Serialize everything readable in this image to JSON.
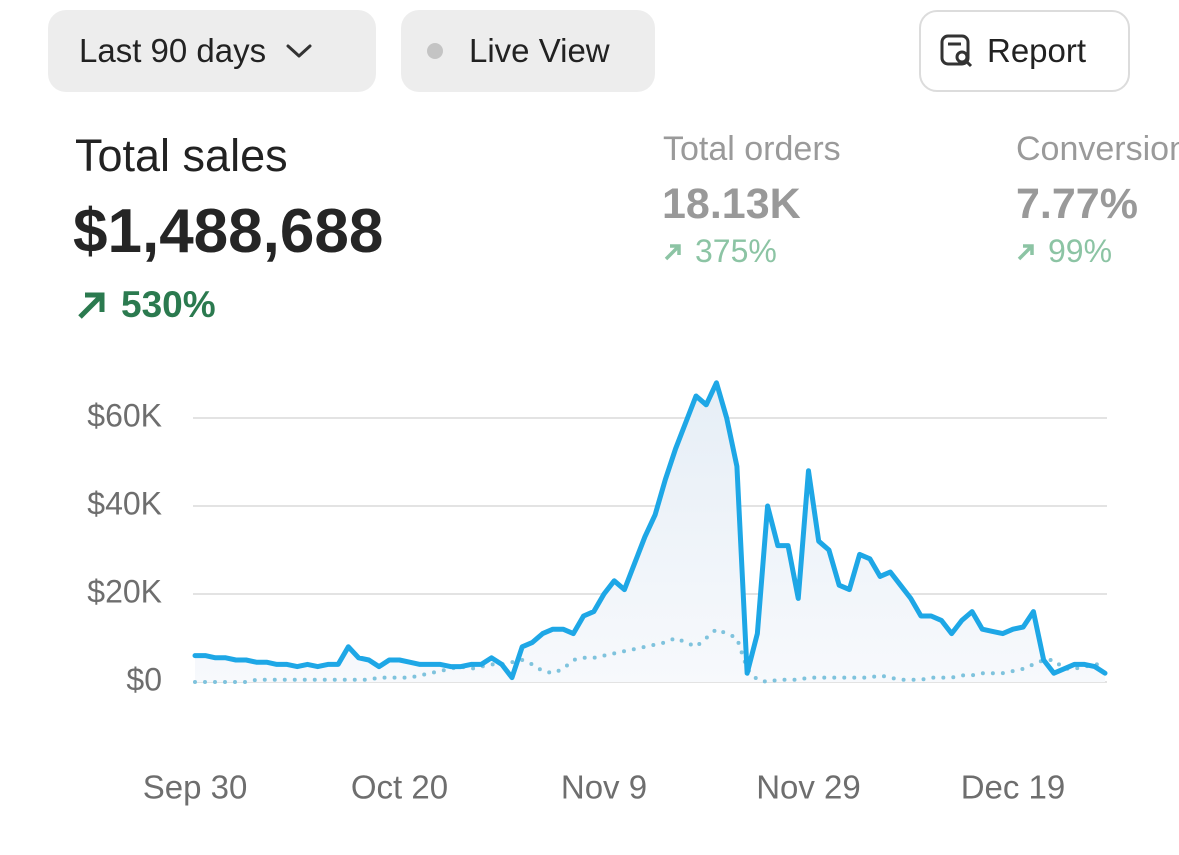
{
  "toolbar": {
    "range": "Last 90 days",
    "live": "Live View",
    "report": "Report"
  },
  "metrics": [
    {
      "label": "Total sales",
      "value": "$1,488,688",
      "change": "530%"
    },
    {
      "label": "Total orders",
      "value": "18.13K",
      "change": "375%"
    },
    {
      "label": "Conversion",
      "value": "7.77%",
      "change": "99%"
    }
  ],
  "chart_data": {
    "type": "line",
    "categories": [
      "Sep 30",
      null,
      null,
      null,
      null,
      null,
      null,
      null,
      null,
      null,
      null,
      null,
      null,
      null,
      null,
      null,
      null,
      null,
      null,
      null,
      "Oct 20",
      null,
      null,
      null,
      null,
      null,
      null,
      null,
      null,
      null,
      null,
      null,
      null,
      null,
      null,
      null,
      null,
      null,
      null,
      null,
      "Nov 9",
      null,
      null,
      null,
      null,
      null,
      null,
      null,
      null,
      null,
      null,
      null,
      null,
      null,
      null,
      null,
      null,
      null,
      null,
      null,
      "Nov 29",
      null,
      null,
      null,
      null,
      null,
      null,
      null,
      null,
      null,
      null,
      null,
      null,
      null,
      null,
      null,
      null,
      null,
      null,
      null,
      "Dec 19",
      null,
      null,
      null,
      null,
      null,
      null,
      null,
      null,
      null
    ],
    "series": [
      {
        "color": "#1ea7e6",
        "style": "solid",
        "area": true,
        "values": [
          6000,
          6000,
          5500,
          5500,
          5000,
          5000,
          4500,
          4500,
          4000,
          4000,
          3500,
          4000,
          3500,
          4000,
          4000,
          8000,
          5500,
          5000,
          3500,
          5000,
          5000,
          4500,
          4000,
          4000,
          4000,
          3500,
          3500,
          4000,
          4000,
          5500,
          4000,
          1000,
          8000,
          9000,
          11000,
          12000,
          12000,
          11000,
          15000,
          16000,
          20000,
          23000,
          21000,
          27000,
          33000,
          38000,
          46000,
          53000,
          59000,
          65000,
          63000,
          68000,
          60000,
          49000,
          2000,
          11000,
          40000,
          31000,
          31000,
          19000,
          48000,
          32000,
          30000,
          22000,
          21000,
          29000,
          28000,
          24000,
          25000,
          22000,
          19000,
          15000,
          15000,
          14000,
          11000,
          14000,
          16000,
          12000,
          11500,
          11000,
          12000,
          12500,
          16000,
          5000,
          2000,
          3000,
          4000,
          4000,
          3500,
          2000
        ]
      },
      {
        "color": "#7fc3dd",
        "style": "dotted",
        "area": false,
        "values": [
          0,
          0,
          0,
          0,
          0,
          0,
          500,
          500,
          500,
          500,
          500,
          500,
          500,
          500,
          500,
          500,
          500,
          500,
          1000,
          1000,
          1000,
          1000,
          1500,
          2000,
          2500,
          3000,
          3500,
          3000,
          3500,
          4000,
          4000,
          4500,
          5000,
          4000,
          2500,
          2000,
          3000,
          5000,
          5500,
          5500,
          6000,
          6500,
          7000,
          7500,
          8000,
          8500,
          9000,
          10000,
          9000,
          8000,
          10000,
          12000,
          11000,
          10000,
          3000,
          500,
          0,
          500,
          500,
          500,
          1000,
          1000,
          1000,
          1000,
          1000,
          1000,
          1000,
          1500,
          1000,
          500,
          500,
          500,
          1000,
          1000,
          1000,
          1500,
          1500,
          2000,
          2000,
          2000,
          2500,
          3000,
          4000,
          5000,
          5000,
          3000,
          3000,
          3500,
          4000,
          4000
        ]
      }
    ],
    "ylim": [
      0,
      70000
    ],
    "yticks": [
      {
        "value": 0,
        "label": "$0"
      },
      {
        "value": 20000,
        "label": "$20K"
      },
      {
        "value": 40000,
        "label": "$40K"
      },
      {
        "value": 60000,
        "label": "$60K"
      }
    ],
    "grid": true
  }
}
